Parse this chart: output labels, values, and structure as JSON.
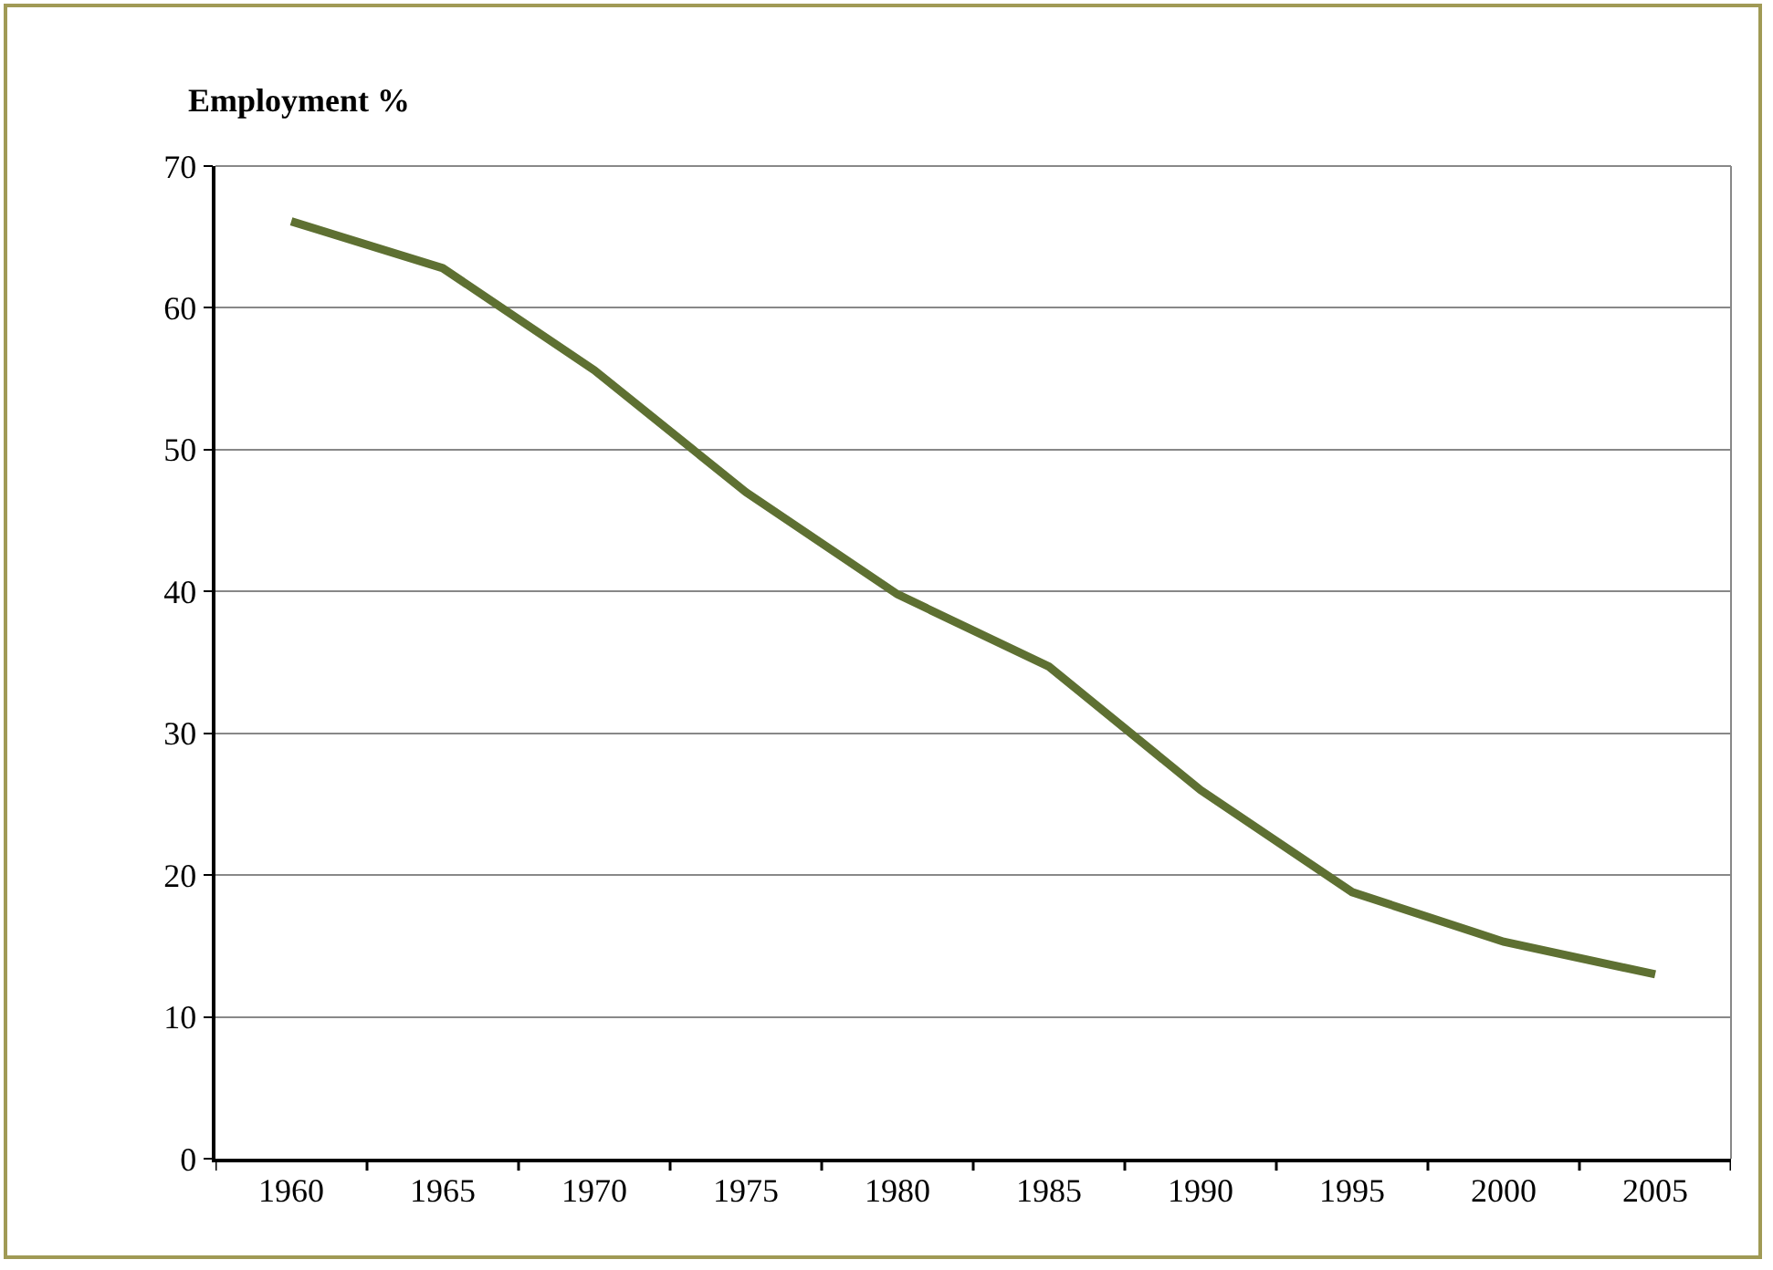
{
  "chart_data": {
    "type": "line",
    "ylabel": "Employment %",
    "categories": [
      "1960",
      "1965",
      "1970",
      "1975",
      "1980",
      "1985",
      "1990",
      "1995",
      "2000",
      "2005"
    ],
    "series": [
      {
        "color": "#5e7032",
        "values": [
          66.1,
          62.8,
          55.6,
          47.0,
          39.8,
          34.7,
          26.0,
          18.8,
          15.3,
          13.0
        ]
      }
    ],
    "ylim": [
      0,
      70
    ],
    "yticks": [
      0,
      10,
      20,
      30,
      40,
      50,
      60,
      70
    ],
    "grid": "y",
    "marker": "none",
    "line_style": "solid"
  }
}
